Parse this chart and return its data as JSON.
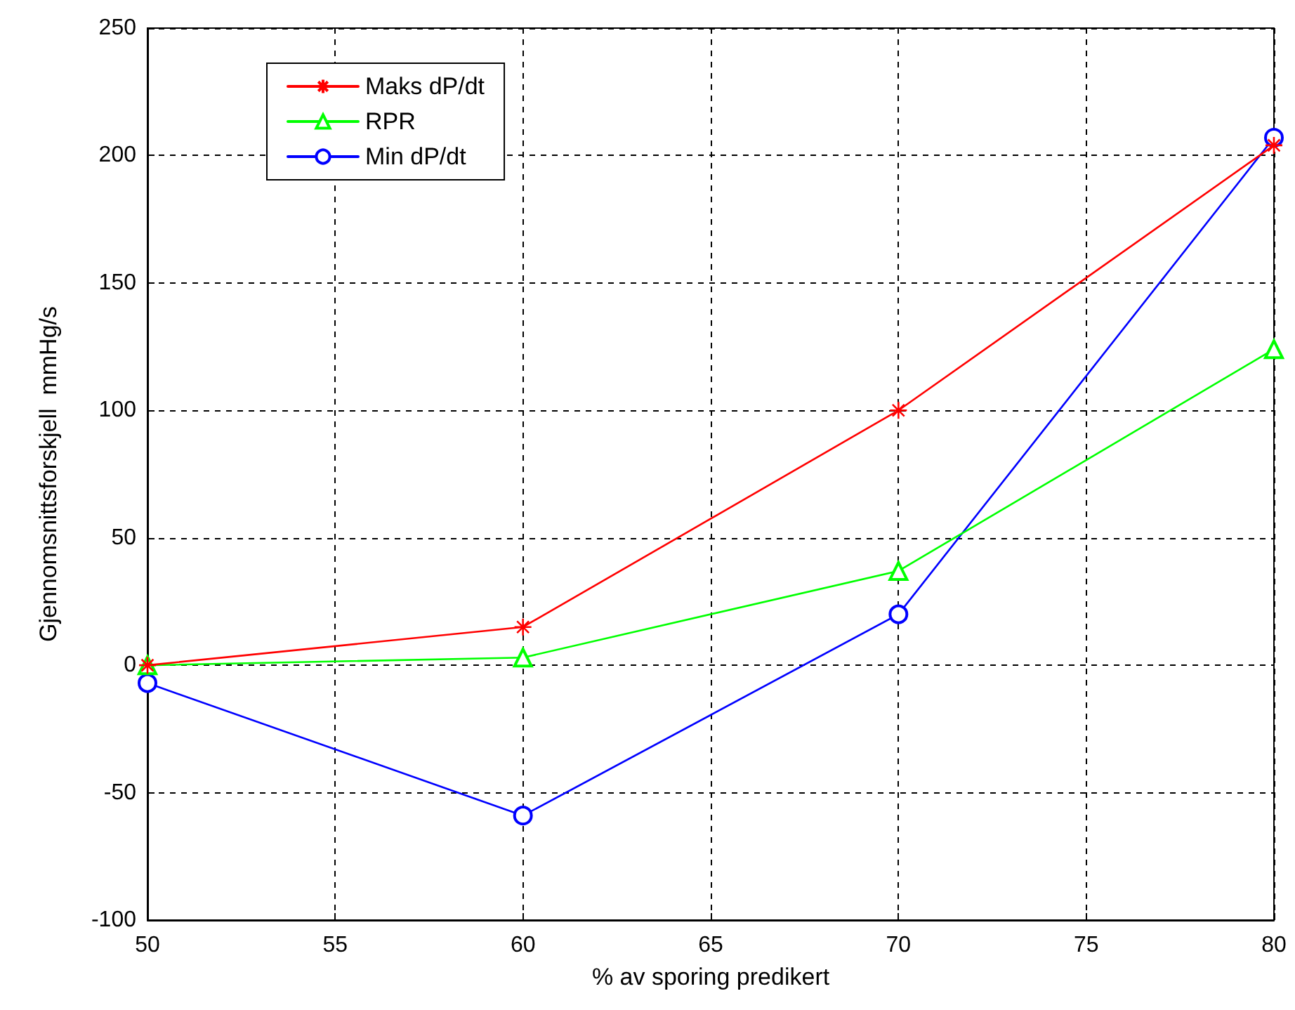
{
  "chart_data": {
    "type": "line",
    "xlabel": "% av sporing predikert",
    "ylabel": "Gjennomsnittsforskjell  mmHg/s",
    "x": [
      50,
      60,
      70,
      80
    ],
    "series": [
      {
        "name": "Maks dP/dt",
        "color": "#ff0000",
        "marker": "cross",
        "values": [
          0,
          15,
          100,
          204
        ]
      },
      {
        "name": "RPR",
        "color": "#00ff00",
        "marker": "triangle",
        "values": [
          0,
          3,
          37,
          124
        ]
      },
      {
        "name": "Min dP/dt",
        "color": "#0000ff",
        "marker": "circle",
        "values": [
          -7,
          -59,
          20,
          207
        ]
      }
    ],
    "xlim": [
      50,
      80
    ],
    "xticks": [
      50,
      55,
      60,
      65,
      70,
      75,
      80
    ],
    "ylim": [
      -100,
      250
    ],
    "yticks": [
      -100,
      -50,
      0,
      50,
      100,
      150,
      200,
      250
    ],
    "grid": true,
    "legend": "top left",
    "line_style": "solid"
  }
}
